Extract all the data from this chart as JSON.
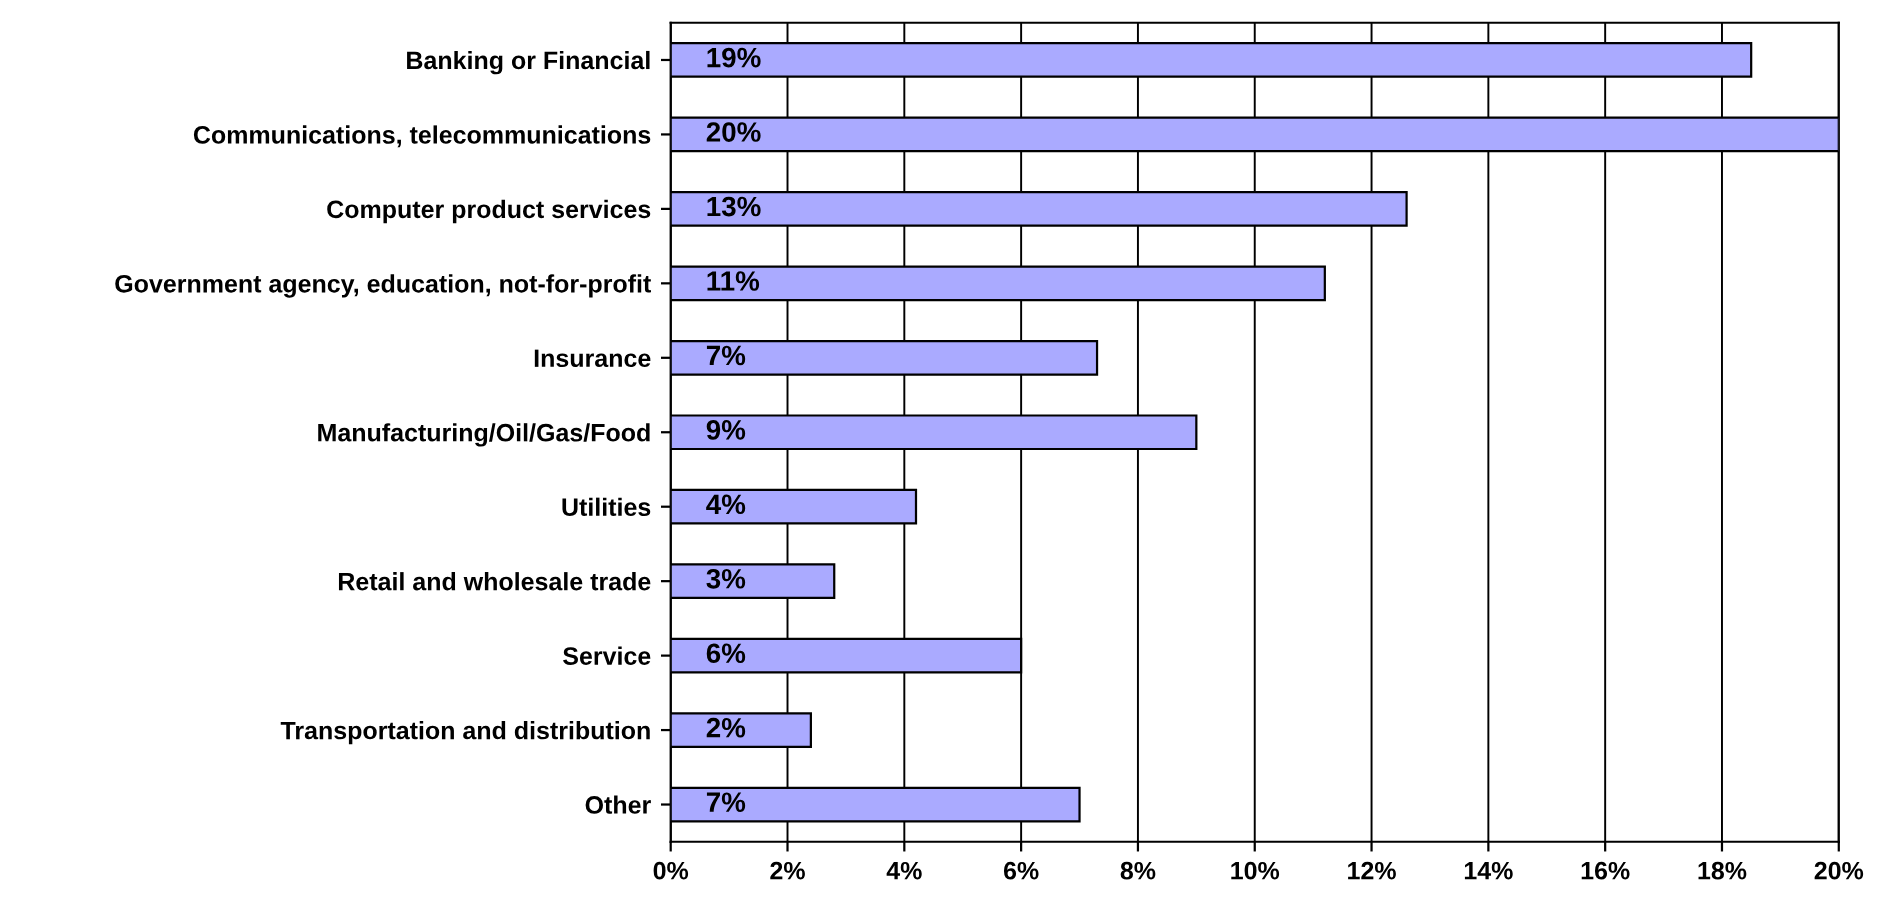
{
  "chart_data": {
    "type": "bar",
    "orientation": "horizontal",
    "categories": [
      "Banking or Financial",
      "Communications, telecommunications",
      "Computer product services",
      "Government agency, education, not-for-profit",
      "Insurance",
      "Manufacturing/Oil/Gas/Food",
      "Utilities",
      "Retail and wholesale trade",
      "Service",
      "Transportation and distribution",
      "Other"
    ],
    "values": [
      18.5,
      20.0,
      12.6,
      11.2,
      7.3,
      9.0,
      4.2,
      2.8,
      6.0,
      2.4,
      7.0
    ],
    "value_labels": [
      "19%",
      "20%",
      "13%",
      "11%",
      "7%",
      "9%",
      "4%",
      "3%",
      "6%",
      "2%",
      "7%"
    ],
    "color": "#aaaaff",
    "xlim": [
      0,
      20
    ],
    "xticks": [
      {
        "value": 0,
        "label": "0%"
      },
      {
        "value": 2,
        "label": "2%"
      },
      {
        "value": 4,
        "label": "4%"
      },
      {
        "value": 6,
        "label": "6%"
      },
      {
        "value": 8,
        "label": "8%"
      },
      {
        "value": 10,
        "label": "10%"
      },
      {
        "value": 12,
        "label": "12%"
      },
      {
        "value": 14,
        "label": "14%"
      },
      {
        "value": 16,
        "label": "16%"
      },
      {
        "value": 18,
        "label": "18%"
      },
      {
        "value": 20,
        "label": "20%"
      }
    ],
    "grid": "x"
  }
}
